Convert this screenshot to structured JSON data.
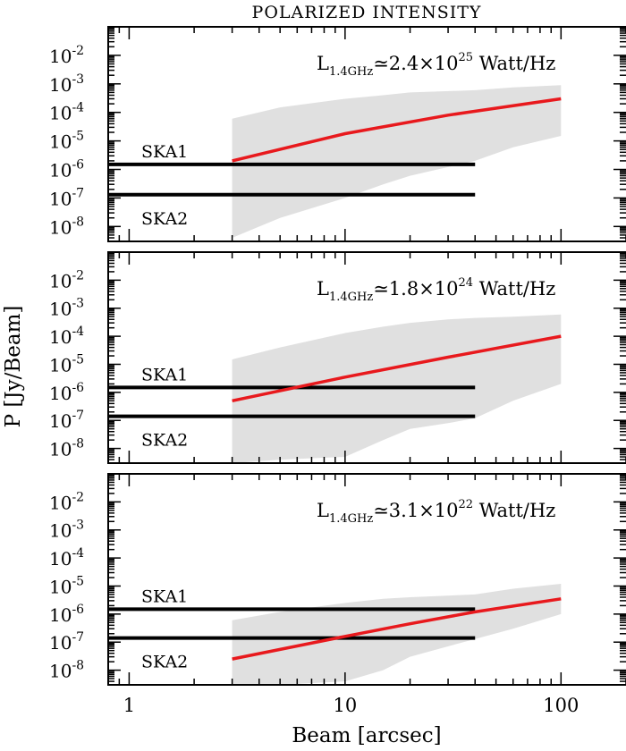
{
  "title": "POLARIZED INTENSITY",
  "ylabel": "P [Jy/Beam]",
  "xlabel": "Beam [arcsec]",
  "colors": {
    "band": "#e0e0e0",
    "curve": "#e8191d",
    "ska": "#000000",
    "axes": "#000000"
  },
  "chart_data": [
    {
      "type": "area",
      "xscale": "log",
      "yscale": "log",
      "xlim": [
        0.8,
        200
      ],
      "ylim": [
        3e-09,
        0.1
      ],
      "xticks": [
        1,
        10,
        100
      ],
      "xticklabels": [
        "1",
        "10",
        "100"
      ],
      "yticks": [
        1e-08,
        1e-07,
        1e-06,
        1e-05,
        0.0001,
        0.001,
        0.01
      ],
      "yticklabels": [
        [
          "10",
          "-8"
        ],
        [
          "10",
          "-7"
        ],
        [
          "10",
          "-6"
        ],
        [
          "10",
          "-5"
        ],
        [
          "10",
          "-4"
        ],
        [
          "10",
          "-3"
        ],
        [
          "10",
          "-2"
        ]
      ],
      "luminosity_label": {
        "prefix": "L",
        "sub": "1.4GHz",
        "mid": "≃2.4×10",
        "sup": "25",
        "suffix": " Watt/Hz"
      },
      "band": {
        "x": [
          3,
          5,
          10,
          15,
          20,
          40,
          60,
          100
        ],
        "upper": [
          6e-05,
          0.00015,
          0.0003,
          0.0004,
          0.0005,
          0.0006,
          0.00075,
          0.0009
        ],
        "lower": [
          4e-09,
          2e-08,
          1e-07,
          3e-07,
          6e-07,
          2e-06,
          6e-06,
          1.5e-05
        ]
      },
      "curve": {
        "x": [
          3,
          10,
          30,
          100
        ],
        "y": [
          2e-06,
          1.8e-05,
          8e-05,
          0.0003
        ]
      },
      "ska_lines": [
        {
          "label": "SKA1",
          "y": 1.5e-06,
          "x_range": [
            3,
            40
          ]
        },
        {
          "label": "SKA2",
          "y": 1.3e-07,
          "x_range": [
            3,
            40
          ]
        }
      ]
    },
    {
      "type": "area",
      "xscale": "log",
      "yscale": "log",
      "xlim": [
        0.8,
        200
      ],
      "ylim": [
        3e-09,
        0.1
      ],
      "xticks": [
        1,
        10,
        100
      ],
      "xticklabels": [
        "1",
        "10",
        "100"
      ],
      "yticks": [
        1e-08,
        1e-07,
        1e-06,
        1e-05,
        0.0001,
        0.001,
        0.01
      ],
      "yticklabels": [
        [
          "10",
          "-8"
        ],
        [
          "10",
          "-7"
        ],
        [
          "10",
          "-6"
        ],
        [
          "10",
          "-5"
        ],
        [
          "10",
          "-4"
        ],
        [
          "10",
          "-3"
        ],
        [
          "10",
          "-2"
        ]
      ],
      "luminosity_label": {
        "prefix": "L",
        "sub": "1.4GHz",
        "mid": "≃1.8×10",
        "sup": "24",
        "suffix": " Watt/Hz"
      },
      "band": {
        "x": [
          3,
          5,
          10,
          15,
          20,
          30,
          40,
          60,
          100
        ],
        "upper": [
          1.5e-05,
          4e-05,
          0.00013,
          0.00022,
          0.0003,
          0.0004,
          0.00045,
          0.0005,
          0.0006
        ],
        "lower": [
          3e-09,
          4e-09,
          5e-09,
          2e-08,
          5e-08,
          8e-08,
          1.2e-07,
          5e-07,
          2e-06
        ]
      },
      "curve": {
        "x": [
          3,
          10,
          30,
          100
        ],
        "y": [
          5e-07,
          3.5e-06,
          1.8e-05,
          0.0001
        ]
      },
      "ska_lines": [
        {
          "label": "SKA1",
          "y": 1.5e-06,
          "x_range": [
            3,
            40
          ]
        },
        {
          "label": "SKA2",
          "y": 1.4e-07,
          "x_range": [
            3,
            40
          ]
        }
      ]
    },
    {
      "type": "area",
      "xscale": "log",
      "yscale": "log",
      "xlim": [
        0.8,
        200
      ],
      "ylim": [
        3e-09,
        0.1
      ],
      "xticks": [
        1,
        10,
        100
      ],
      "xticklabels": [
        "1",
        "10",
        "100"
      ],
      "yticks": [
        1e-08,
        1e-07,
        1e-06,
        1e-05,
        0.0001,
        0.001,
        0.01
      ],
      "yticklabels": [
        [
          "10",
          "-8"
        ],
        [
          "10",
          "-7"
        ],
        [
          "10",
          "-6"
        ],
        [
          "10",
          "-5"
        ],
        [
          "10",
          "-4"
        ],
        [
          "10",
          "-3"
        ],
        [
          "10",
          "-2"
        ]
      ],
      "luminosity_label": {
        "prefix": "L",
        "sub": "1.4GHz",
        "mid": "≃3.1×10",
        "sup": "22",
        "suffix": " Watt/Hz"
      },
      "band": {
        "x": [
          3,
          5,
          10,
          15,
          20,
          40,
          60,
          100
        ],
        "upper": [
          6e-07,
          1.2e-06,
          2.5e-06,
          3.5e-06,
          4e-06,
          5e-06,
          8e-06,
          1.2e-05
        ],
        "lower": [
          3e-09,
          3e-09,
          4e-09,
          1e-08,
          3e-08,
          1.3e-07,
          3e-07,
          1e-06
        ]
      },
      "curve": {
        "x": [
          3,
          10,
          20,
          40,
          100
        ],
        "y": [
          2.5e-08,
          1.6e-07,
          4.5e-07,
          1.2e-06,
          3.5e-06
        ]
      },
      "ska_lines": [
        {
          "label": "SKA1",
          "y": 1.5e-06,
          "x_range": [
            3,
            40
          ]
        },
        {
          "label": "SKA2",
          "y": 1.4e-07,
          "x_range": [
            3,
            40
          ]
        }
      ]
    }
  ]
}
